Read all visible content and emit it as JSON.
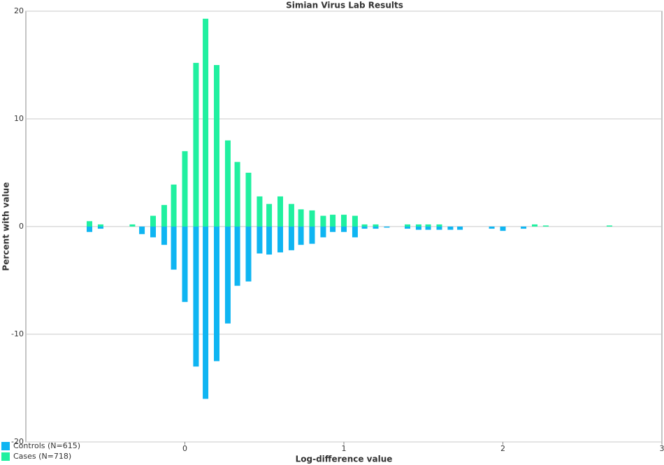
{
  "chart_data": {
    "type": "bar",
    "title": "Simian Virus Lab Results",
    "x_label": "Log-difference value",
    "y_label": "Percent with value",
    "x": [
      -0.6,
      -0.53,
      -0.33,
      -0.27,
      -0.2,
      -0.13,
      -0.07,
      0,
      0.07,
      0.13,
      0.2,
      0.27,
      0.33,
      0.4,
      0.47,
      0.53,
      0.6,
      0.67,
      0.73,
      0.8,
      0.87,
      0.93,
      1.0,
      1.07,
      1.13,
      1.2,
      1.27,
      1.4,
      1.47,
      1.53,
      1.6,
      1.67,
      1.73,
      1.93,
      2.0,
      2.13,
      2.2,
      2.27,
      2.67
    ],
    "series": [
      {
        "name": "Controls (N=615)",
        "color": "#0fb5f2",
        "values": [
          -0.5,
          -0.2,
          0,
          -0.7,
          -1.0,
          -1.7,
          -4.0,
          -7.0,
          -13.0,
          -16.0,
          -12.5,
          -9.0,
          -5.5,
          -5.1,
          -2.5,
          -2.6,
          -2.4,
          -2.2,
          -1.7,
          -1.6,
          -1.0,
          -0.5,
          -0.5,
          -1.0,
          -0.2,
          -0.2,
          -0.1,
          -0.2,
          -0.3,
          -0.3,
          -0.3,
          -0.3,
          -0.3,
          -0.2,
          -0.4,
          -0.2,
          0,
          0,
          0
        ]
      },
      {
        "name": "Cases (N=718)",
        "color": "#20f0a0",
        "values": [
          0.5,
          0.2,
          0.2,
          0,
          1.0,
          2.0,
          3.9,
          7.0,
          15.2,
          19.3,
          15.0,
          8.0,
          6.0,
          5.0,
          2.8,
          2.1,
          2.8,
          2.1,
          1.6,
          1.5,
          1.0,
          1.1,
          1.1,
          1.0,
          0.2,
          0.2,
          0,
          0.2,
          0.2,
          0.2,
          0.2,
          0,
          0,
          0,
          0,
          0,
          0.2,
          0.1,
          0.1
        ]
      }
    ],
    "xlim": [
      -1,
      3
    ],
    "xticks": [
      0,
      1,
      2,
      3
    ],
    "ylim": [
      -20,
      20
    ],
    "yticks": [
      -20,
      -10,
      0,
      10,
      20
    ],
    "grid": true,
    "legend": "bottom-left"
  }
}
